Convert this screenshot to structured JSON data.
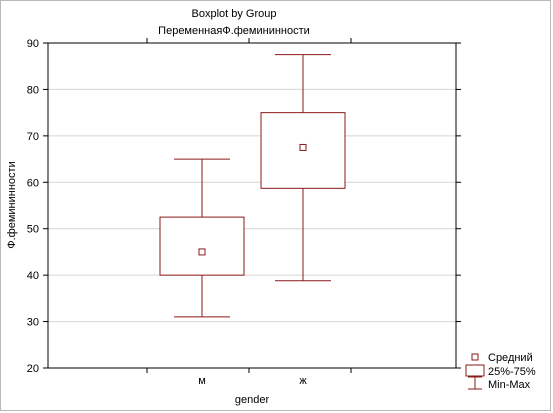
{
  "chart_data": {
    "type": "boxplot",
    "title": "Boxplot by Group",
    "subtitle": "ПеременнаяФ.фемининности",
    "xlabel": "gender",
    "ylabel": "Ф.фемининности",
    "ylim": [
      20,
      90
    ],
    "yticks": [
      20,
      30,
      40,
      50,
      60,
      70,
      80,
      90
    ],
    "grid": true,
    "legend_position": "bottom-right",
    "categories": [
      "м",
      "ж"
    ],
    "groups": [
      {
        "category": "м",
        "mean": 45,
        "q1": 40,
        "q3": 52.5,
        "min": 31,
        "max": 65
      },
      {
        "category": "ж",
        "mean": 67.5,
        "q1": 58.7,
        "q3": 75,
        "min": 38.8,
        "max": 87.5
      }
    ],
    "legend": [
      "Средний",
      "25%-75%",
      "Min-Max"
    ],
    "color": "#8b1a1a"
  }
}
